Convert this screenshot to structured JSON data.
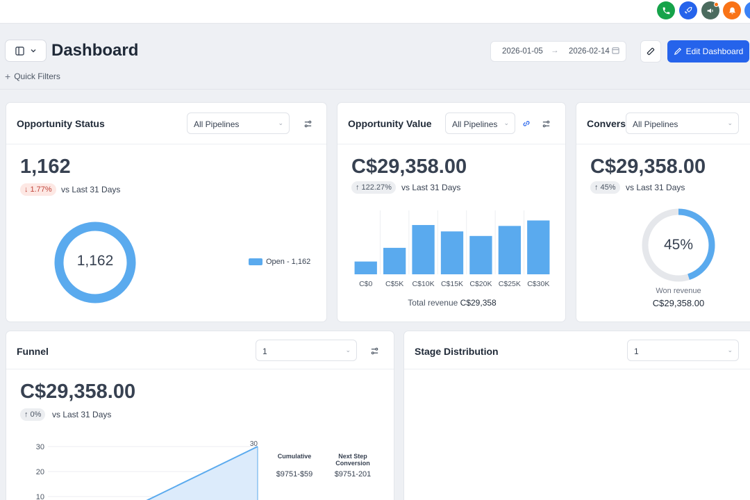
{
  "header": {
    "title": "Dashboard",
    "quick_filters_label": "Quick Filters",
    "date_start": "2026-01-05",
    "date_end": "2026-02-14",
    "edit_button_label": "Edit Dashboard"
  },
  "colors": {
    "accent": "#2563eb",
    "chart_blue": "#5aaaee",
    "ring_gray": "#e5e7eb"
  },
  "top_icons": [
    "phone-icon",
    "rocket-icon",
    "megaphone-icon",
    "bell-icon",
    "user-icon"
  ],
  "opportunity_status": {
    "title": "Opportunity Status",
    "filter_value": "All Pipelines",
    "value": "1,162",
    "change": "1.77%",
    "change_direction": "down",
    "vs_label": "vs Last 31 Days",
    "donut_center": "1,162",
    "legend_label": "Open - 1,162"
  },
  "opportunity_value": {
    "title": "Opportunity Value",
    "filter_value": "All Pipelines",
    "value": "C$29,358.00",
    "change": "122.27%",
    "change_direction": "up",
    "vs_label": "vs Last 31 Days",
    "total_label": "Total revenue",
    "total_value": "C$29,358"
  },
  "conversion": {
    "title": "Convers",
    "filter_value": "All Pipelines",
    "value": "C$29,358.00",
    "change": "45%",
    "change_direction": "up",
    "vs_label": "vs Last 31 Days",
    "gauge_value": 0.45,
    "gauge_label": "45%",
    "won_label": "Won revenue",
    "won_value": "C$29,358.00"
  },
  "funnel": {
    "title": "Funnel",
    "filter_value": "1",
    "value": "C$29,358.00",
    "change": "0%",
    "change_direction": "up",
    "vs_label": "vs Last 31 Days",
    "col_cumulative": "Cumulative",
    "col_next_step": "Next Step Conversion",
    "row_cumulative": "$9751-$59",
    "row_next_step": "$9751-201"
  },
  "stage_distribution": {
    "title": "Stage Distribution",
    "filter_value": "1"
  },
  "chart_data": [
    {
      "type": "bar",
      "categories": [
        "C$0",
        "C$5K",
        "C$10K",
        "C$15K",
        "C$20K",
        "C$25K",
        "C$30K"
      ],
      "values": [
        7,
        14.5,
        27,
        23.5,
        21,
        26.5,
        29.5
      ],
      "ylim": [
        0,
        35
      ],
      "grid": true,
      "color": "#5aaaee"
    },
    {
      "type": "pie",
      "labels": [
        "Open - 1,162"
      ],
      "values": [
        1162
      ],
      "color": "#5aaaee"
    },
    {
      "type": "area",
      "x": [
        0,
        1,
        2,
        3
      ],
      "values": [
        0,
        10,
        20,
        30
      ],
      "yticks": [
        "30",
        "20",
        "10"
      ],
      "ylim": [
        0,
        30
      ],
      "peak_label": "30",
      "color": "#5aaaee"
    }
  ]
}
